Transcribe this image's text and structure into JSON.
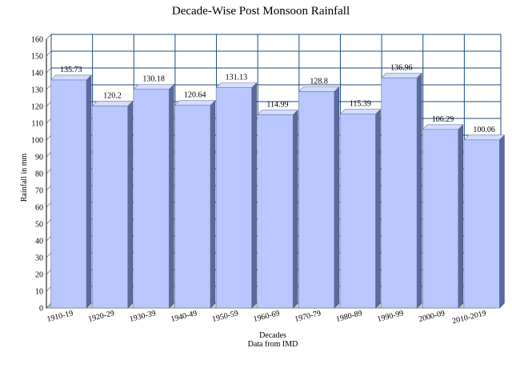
{
  "chart_data": {
    "type": "bar",
    "title": "Decade-Wise Post Monsoon Rainfall",
    "xlabel": "Decades",
    "source_note": "Data from IMD",
    "ylabel": "Rainfall in mm",
    "categories": [
      "1910-19",
      "1920-29",
      "1930-39",
      "1940-49",
      "1950-59",
      "1960-69",
      "1970-79",
      "1980-89",
      "1990-99",
      "2000-09",
      "2010-2019"
    ],
    "values": [
      135.73,
      120.2,
      130.18,
      120.64,
      131.13,
      114.99,
      128.8,
      115.39,
      136.96,
      106.29,
      100.06
    ],
    "value_labels": [
      "135.73",
      "120.2",
      "130.18",
      "120.64",
      "131.13",
      "114.99",
      "128.8",
      "115.39",
      "136.96",
      "106.29",
      "100.06"
    ],
    "ylim": [
      0,
      160
    ],
    "ytick_step": 10,
    "grid": true,
    "style": "3d-bars",
    "colors": {
      "bar_front": "#b8c8ff",
      "bar_top": "#d4ddff",
      "bar_side": "#5a6a9a",
      "grid": "#1f4e79",
      "floor": "#c8c8c8"
    }
  }
}
